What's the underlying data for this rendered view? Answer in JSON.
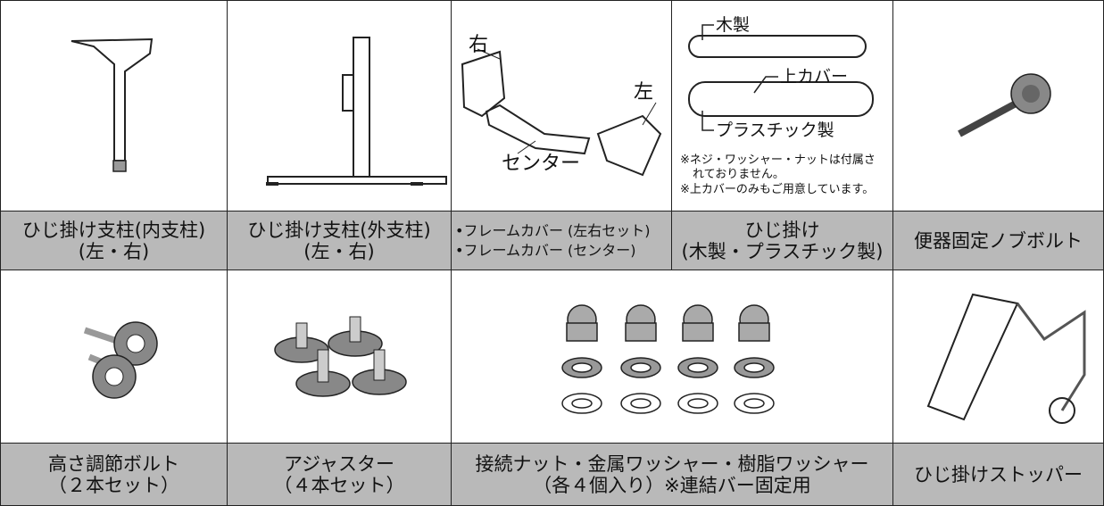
{
  "parts": [
    {
      "label": [
        "ひじ掛け支柱(内支柱)",
        "(左・右)"
      ]
    },
    {
      "label": [
        "ひじ掛け支柱(外支柱)",
        "(左・右)"
      ]
    },
    {
      "label": [
        "•フレームカバー (左右セット)",
        "•フレームカバー (センター)"
      ],
      "callouts": [
        "右",
        "左",
        "センター"
      ]
    },
    {
      "label": [
        "ひじ掛け",
        "(木製・プラスチック製)"
      ],
      "callouts": [
        "木製",
        "上カバー",
        "プラスチック製"
      ],
      "notes": [
        "※ネジ・ワッシャー・ナットは付属さ",
        "れておりません。",
        "※上カバーのみもご用意しています。"
      ]
    },
    {
      "label": [
        "便器固定ノブボルト"
      ]
    },
    {
      "label": [
        "高さ調節ボルト",
        "（２本セット）"
      ]
    },
    {
      "label": [
        "アジャスター",
        "（４本セット）"
      ]
    },
    {
      "label": [
        "接続ナット・金属ワッシャー・樹脂ワッシャー",
        "（各４個入り）※連結バー固定用"
      ]
    },
    {
      "label": [
        "ひじ掛けストッパー"
      ]
    }
  ]
}
